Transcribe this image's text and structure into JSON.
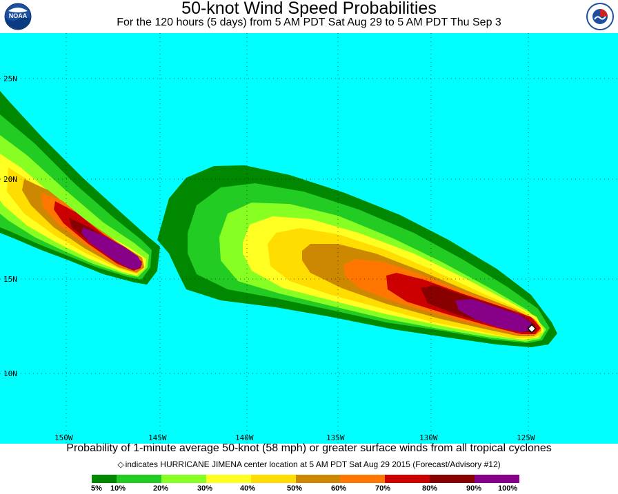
{
  "header": {
    "title": "50-knot Wind Speed Probabilities",
    "subtitle": "For the 120 hours (5 days) from 5 AM PDT Sat Aug 29 to 5 AM PDT Thu Sep 3"
  },
  "logos": {
    "left": {
      "text": "NOAA",
      "icon": "noaa-logo"
    },
    "right": {
      "text": "NATIONAL WEATHER SERVICE",
      "icon": "nws-logo"
    }
  },
  "map": {
    "background": "#00ffff",
    "lat_labels": [
      "25N",
      "20N",
      "15N",
      "10N"
    ],
    "lon_labels": [
      "150W",
      "145W",
      "140W",
      "135W",
      "130W",
      "125W"
    ],
    "storm_marker": {
      "name": "HURRICANE JIMENA",
      "lon": -125,
      "lat": 12.3,
      "icon": "diamond-icon"
    }
  },
  "footer": {
    "caption": "Probability of 1-minute average 50-knot (58 mph) or greater surface winds from all tropical cyclones",
    "note": "indicates HURRICANE JIMENA center location at 5 AM PDT Sat Aug 29 2015 (Forecast/Advisory #12)"
  },
  "legend": {
    "labels": [
      "5%",
      "10%",
      "20%",
      "30%",
      "40%",
      "50%",
      "60%",
      "70%",
      "80%",
      "90%",
      "100%"
    ],
    "colors": [
      "#008800",
      "#22cc22",
      "#88ff22",
      "#ffff22",
      "#ffdd00",
      "#cc8800",
      "#ff7700",
      "#cc0000",
      "#880000",
      "#880088"
    ]
  }
}
